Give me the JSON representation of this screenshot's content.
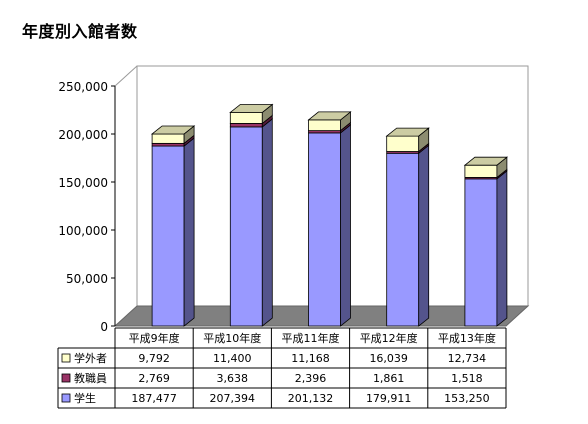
{
  "page": {
    "title": "年度別入館者数"
  },
  "colors": {
    "student": "#9999ff",
    "staff": "#993366",
    "outside": "#ffffcc",
    "floor": "#808080",
    "wall": "#ffffff",
    "line": "#000000"
  },
  "chart_data": {
    "type": "bar",
    "stacked": true,
    "three_d": true,
    "title": "年度別入館者数",
    "categories": [
      "平成9年度",
      "平成10年度",
      "平成11年度",
      "平成12年度",
      "平成13年度"
    ],
    "series": [
      {
        "name": "学生",
        "values": [
          187477,
          207394,
          201132,
          179911,
          153250
        ],
        "display": [
          "187,477",
          "207,394",
          "201,132",
          "179,911",
          "153,250"
        ]
      },
      {
        "name": "教職員",
        "values": [
          2769,
          3638,
          2396,
          1861,
          1518
        ],
        "display": [
          "2,769",
          "3,638",
          "2,396",
          "1,861",
          "1,518"
        ]
      },
      {
        "name": "学外者",
        "values": [
          9792,
          11400,
          11168,
          16039,
          12734
        ],
        "display": [
          "9,792",
          "11,400",
          "11,168",
          "16,039",
          "12,734"
        ]
      }
    ],
    "table_row_order": [
      "学外者",
      "教職員",
      "学生"
    ],
    "ylim": [
      0,
      250000
    ],
    "yticks": [
      0,
      50000,
      100000,
      150000,
      200000,
      250000
    ],
    "ytick_labels": [
      "0",
      "50,000",
      "100,000",
      "150,000",
      "200,000",
      "250,000"
    ],
    "data_table": true,
    "grid": false
  }
}
